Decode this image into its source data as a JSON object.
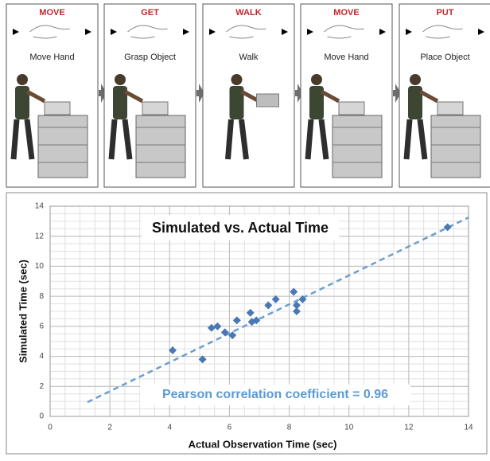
{
  "panels": [
    {
      "verb": "MOVE",
      "label": "Move Hand"
    },
    {
      "verb": "GET",
      "label": "Grasp Object"
    },
    {
      "verb": "WALK",
      "label": "Walk"
    },
    {
      "verb": "MOVE",
      "label": "Move Hand"
    },
    {
      "verb": "PUT",
      "label": "Place Object"
    }
  ],
  "chart_data": {
    "type": "scatter",
    "title": "Simulated vs. Actual Time",
    "annotation": "Pearson correlation coefficient = 0.96",
    "x_label": "Actual Observation Time (sec)",
    "y_label": "Simulated Time (sec)",
    "x": [
      4.1,
      5.1,
      5.4,
      5.6,
      5.85,
      6.1,
      6.25,
      6.7,
      6.75,
      6.9,
      7.3,
      7.55,
      8.15,
      8.25,
      8.25,
      8.45,
      13.3
    ],
    "values": [
      4.4,
      3.8,
      5.9,
      6.0,
      5.6,
      5.4,
      6.4,
      6.9,
      6.3,
      6.4,
      7.4,
      7.8,
      8.3,
      7.4,
      7.0,
      7.8,
      12.6
    ],
    "color": "#4a78b4",
    "trendline": {
      "x": [
        1.25,
        14
      ],
      "y": [
        0.95,
        13.25
      ],
      "color": "#6a9fd0"
    },
    "xlim": [
      0,
      14
    ],
    "ylim": [
      0,
      14
    ],
    "xticks": [
      0,
      2,
      4,
      6,
      8,
      10,
      12,
      14
    ],
    "yticks": [
      0,
      2,
      4,
      6,
      8,
      10,
      12,
      14
    ],
    "grid": true,
    "minor_grid": 0.5
  }
}
